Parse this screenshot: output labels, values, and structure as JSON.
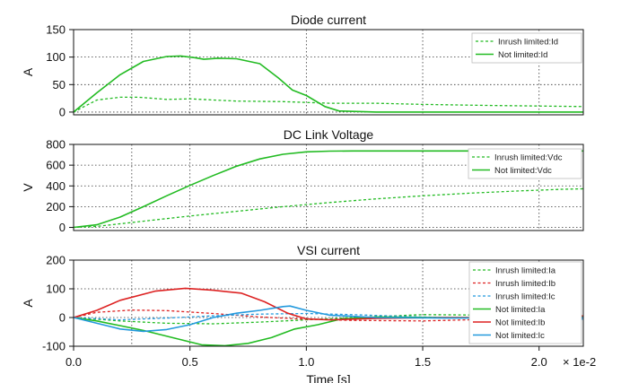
{
  "chart_data": [
    {
      "type": "line",
      "title": "Diode current",
      "ylabel": "A",
      "xlim": [
        0.0,
        0.0219
      ],
      "ylim": [
        -5,
        150
      ],
      "yticks": [
        0,
        50,
        100,
        150
      ],
      "legend_position": "top-right",
      "grid": true,
      "series": [
        {
          "name": "Inrush limited:Id",
          "color": "#22bb22",
          "dash": true,
          "x": [
            0,
            0.001,
            0.002,
            0.0028,
            0.004,
            0.005,
            0.007,
            0.009,
            0.011,
            0.013,
            0.015,
            0.018,
            0.0219
          ],
          "y": [
            0,
            22,
            27,
            27,
            23,
            24,
            20,
            19,
            16,
            16,
            14,
            12,
            10
          ]
        },
        {
          "name": "Not limited:Id",
          "color": "#22bb22",
          "dash": false,
          "x": [
            0,
            0.001,
            0.002,
            0.003,
            0.004,
            0.0046,
            0.0052,
            0.0056,
            0.0062,
            0.007,
            0.008,
            0.0088,
            0.0094,
            0.01,
            0.0108,
            0.0114,
            0.013,
            0.0219
          ],
          "y": [
            0,
            35,
            68,
            92,
            101,
            102,
            99,
            96,
            98,
            97,
            88,
            62,
            40,
            30,
            10,
            2,
            0,
            0
          ]
        }
      ]
    },
    {
      "type": "line",
      "title": "DC Link Voltage",
      "ylabel": "V",
      "xlim": [
        0.0,
        0.0219
      ],
      "ylim": [
        -30,
        800
      ],
      "yticks": [
        0,
        200,
        400,
        600,
        800
      ],
      "legend_position": "top-right",
      "grid": true,
      "series": [
        {
          "name": "Inrush limited:Vdc",
          "color": "#22bb22",
          "dash": true,
          "x": [
            0,
            0.001,
            0.003,
            0.005,
            0.007,
            0.009,
            0.011,
            0.013,
            0.015,
            0.017,
            0.019,
            0.021,
            0.0219
          ],
          "y": [
            0,
            10,
            60,
            110,
            155,
            200,
            240,
            275,
            305,
            330,
            350,
            368,
            372
          ]
        },
        {
          "name": "Not limited:Vdc",
          "color": "#22bb22",
          "dash": false,
          "x": [
            0,
            0.001,
            0.002,
            0.003,
            0.004,
            0.005,
            0.006,
            0.007,
            0.008,
            0.009,
            0.01,
            0.011,
            0.012,
            0.015,
            0.0219
          ],
          "y": [
            0,
            25,
            100,
            200,
            305,
            405,
            500,
            590,
            660,
            705,
            728,
            735,
            737,
            737,
            737
          ]
        }
      ]
    },
    {
      "type": "line",
      "title": "VSI current",
      "ylabel": "A",
      "xlabel": "Time [s]",
      "x_multiplier": "× 1e-2",
      "xlim": [
        0.0,
        0.0219
      ],
      "ylim": [
        -100,
        200
      ],
      "yticks": [
        -100,
        0,
        100,
        200
      ],
      "xticks": [
        0.0,
        0.5,
        1.0,
        1.5,
        2.0
      ],
      "legend_position": "right",
      "grid": true,
      "series": [
        {
          "name": "Inrush limited:Ia",
          "color": "#22bb22",
          "dash": true,
          "x": [
            0,
            0.002,
            0.004,
            0.006,
            0.008,
            0.01,
            0.012,
            0.015,
            0.018,
            0.0219
          ],
          "y": [
            0,
            -12,
            -20,
            -22,
            -16,
            -8,
            0,
            10,
            8,
            3
          ]
        },
        {
          "name": "Inrush limited:Ib",
          "color": "#dd2222",
          "dash": true,
          "x": [
            0,
            0.001,
            0.0025,
            0.004,
            0.006,
            0.008,
            0.01,
            0.012,
            0.015,
            0.018,
            0.0219
          ],
          "y": [
            0,
            18,
            26,
            24,
            14,
            2,
            -6,
            -10,
            -12,
            -6,
            6
          ]
        },
        {
          "name": "Inrush limited:Ic",
          "color": "#2299dd",
          "dash": true,
          "x": [
            0,
            0.002,
            0.004,
            0.006,
            0.008,
            0.01,
            0.012,
            0.015,
            0.018,
            0.0219
          ],
          "y": [
            0,
            -8,
            -2,
            6,
            12,
            14,
            10,
            2,
            -4,
            -6
          ]
        },
        {
          "name": "Not limited:Ia",
          "color": "#22bb22",
          "dash": false,
          "x": [
            0,
            0.001,
            0.003,
            0.0045,
            0.0055,
            0.0065,
            0.0075,
            0.0085,
            0.0095,
            0.0105,
            0.0115,
            0.013,
            0.016,
            0.0219
          ],
          "y": [
            0,
            -12,
            -45,
            -75,
            -95,
            -98,
            -90,
            -70,
            -40,
            -25,
            -5,
            2,
            0,
            0
          ]
        },
        {
          "name": "Not limited:Ib",
          "color": "#dd2222",
          "dash": false,
          "x": [
            0,
            0.001,
            0.002,
            0.0035,
            0.0048,
            0.006,
            0.0072,
            0.0082,
            0.0092,
            0.01,
            0.011,
            0.013,
            0.016,
            0.0219
          ],
          "y": [
            0,
            25,
            60,
            92,
            102,
            95,
            85,
            55,
            15,
            -5,
            -8,
            -3,
            0,
            0
          ]
        },
        {
          "name": "Not limited:Ic",
          "color": "#2299dd",
          "dash": false,
          "x": [
            0,
            0.001,
            0.002,
            0.003,
            0.004,
            0.005,
            0.006,
            0.007,
            0.008,
            0.009,
            0.0093,
            0.01,
            0.011,
            0.013,
            0.016,
            0.0219
          ],
          "y": [
            0,
            -20,
            -40,
            -48,
            -42,
            -25,
            0,
            15,
            25,
            38,
            40,
            25,
            8,
            0,
            -2,
            0
          ]
        }
      ]
    }
  ]
}
